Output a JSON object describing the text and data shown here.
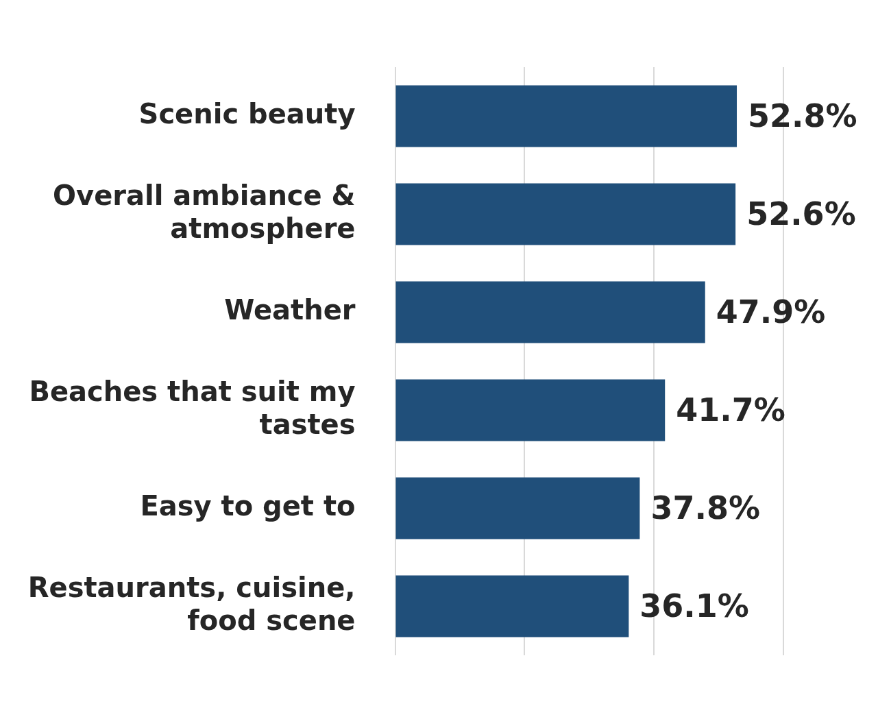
{
  "chart_data": {
    "type": "bar",
    "orientation": "horizontal",
    "categories": [
      "Scenic beauty",
      "Overall ambiance & atmosphere",
      "Weather",
      "Beaches that suit my tastes",
      "Easy to get to",
      "Restaurants, cuisine, food scene"
    ],
    "values": [
      52.8,
      52.6,
      47.9,
      41.7,
      37.8,
      36.1
    ],
    "value_labels": [
      "52.8%",
      "52.6%",
      "47.9%",
      "41.7%",
      "37.8%",
      "36.1%"
    ],
    "color": "#204f7a",
    "xlim": [
      0,
      60
    ],
    "xticks": [
      {
        "value": 0,
        "label": null
      },
      {
        "value": 20,
        "label": null
      },
      {
        "value": 40,
        "label": null
      },
      {
        "value": 60,
        "label": null
      }
    ],
    "tick_labels": "y",
    "grid": "x",
    "legend": false
  }
}
